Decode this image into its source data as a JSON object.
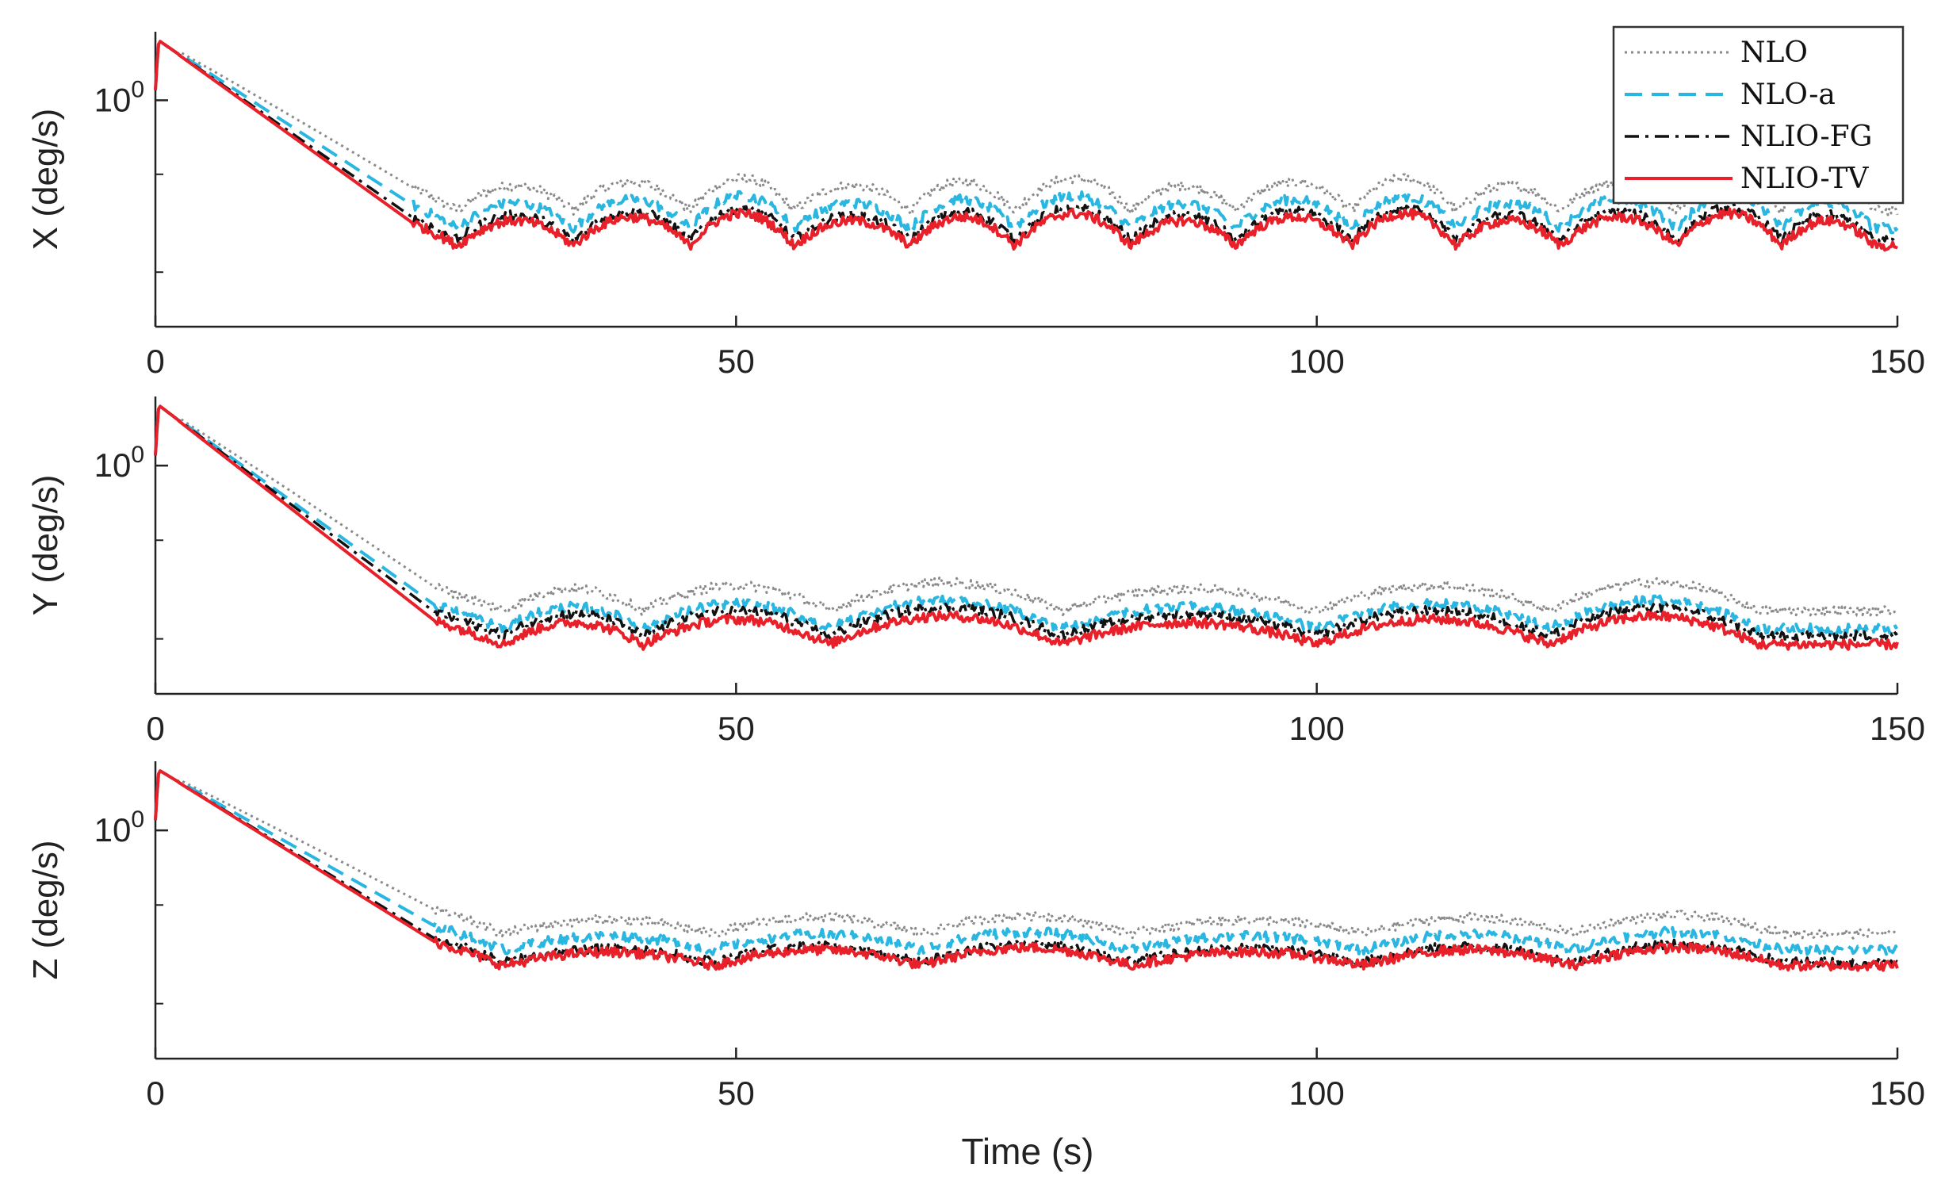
{
  "chart_data": {
    "type": "line",
    "xlabel": "Time (s)",
    "x_range": [
      0,
      150
    ],
    "x_ticks": [
      "0",
      "50",
      "100",
      "150"
    ],
    "y_scale": "log",
    "legend": {
      "location": "top-right",
      "entries": [
        {
          "name": "NLO",
          "style": "dotted",
          "color": "#8a8a8a"
        },
        {
          "name": "NLO-a",
          "style": "dashed",
          "color": "#29b6e0"
        },
        {
          "name": "NLIO-FG",
          "style": "dashdot",
          "color": "#111111"
        },
        {
          "name": "NLIO-TV",
          "style": "solid",
          "color": "#e8202a"
        }
      ]
    },
    "panels": [
      {
        "ylabel": "X (deg/s)",
        "ytick_base": "10",
        "ytick_exp": "0",
        "ytick_value": 1.0,
        "ylim": [
          0.12,
          1.9
        ],
        "decay_end_time": 22,
        "plateau_level": 0.27,
        "bump_times": [
          26,
          36,
          46,
          55,
          65,
          74,
          84,
          93,
          103,
          112,
          121,
          131,
          140,
          148
        ],
        "bump_amplitude": 0.35,
        "series_offsets": {
          "NLO": 1.32,
          "NLO-a": 1.12,
          "NLIO-FG": 1.0,
          "NLIO-TV": 0.95
        }
      },
      {
        "ylabel": "Y (deg/s)",
        "ytick_base": "10",
        "ytick_exp": "0",
        "ytick_value": 1.0,
        "ylim": [
          0.12,
          1.9
        ],
        "decay_end_time": 24,
        "plateau_level": 0.2,
        "bump_times": [
          30,
          42,
          58,
          78,
          100,
          120,
          138
        ],
        "bump_amplitude": 0.3,
        "series_offsets": {
          "NLO": 1.3,
          "NLO-a": 1.1,
          "NLIO-FG": 1.03,
          "NLIO-TV": 0.95
        }
      },
      {
        "ylabel": "Z (deg/s)",
        "ytick_base": "10",
        "ytick_exp": "0",
        "ytick_value": 1.0,
        "ylim": [
          0.12,
          1.9
        ],
        "decay_end_time": 24,
        "plateau_level": 0.3,
        "bump_times": [
          30,
          48,
          66,
          84,
          104,
          122,
          140
        ],
        "bump_amplitude": 0.18,
        "series_offsets": {
          "NLO": 1.28,
          "NLO-a": 1.1,
          "NLIO-FG": 0.98,
          "NLIO-TV": 0.95
        }
      }
    ]
  }
}
